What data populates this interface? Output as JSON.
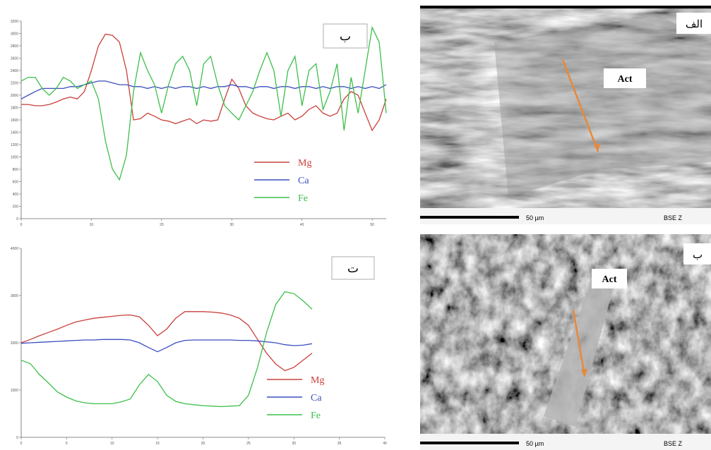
{
  "chart_data": [
    {
      "type": "line",
      "annotation": "ب",
      "x": [
        0,
        1,
        2,
        3,
        4,
        5,
        6,
        7,
        8,
        9,
        10,
        11,
        12,
        13,
        14,
        15,
        16,
        17,
        18,
        19,
        20,
        21,
        22,
        23,
        24,
        25,
        26,
        27,
        28,
        29,
        30,
        31,
        32,
        33,
        34,
        35,
        36,
        37,
        38,
        39,
        40,
        41,
        42,
        43,
        44,
        45,
        46,
        47,
        48,
        49,
        50,
        51,
        52
      ],
      "series": [
        {
          "name": "Mg",
          "color": "#c8403a",
          "values": [
            1850,
            1850,
            1830,
            1830,
            1850,
            1890,
            1940,
            1970,
            1940,
            2060,
            2400,
            2800,
            2990,
            2970,
            2860,
            2400,
            1600,
            1620,
            1710,
            1660,
            1600,
            1580,
            1540,
            1580,
            1620,
            1540,
            1600,
            1580,
            1600,
            1940,
            2260,
            2110,
            1830,
            1710,
            1660,
            1620,
            1600,
            1660,
            1710,
            1600,
            1660,
            1770,
            1830,
            1710,
            1660,
            1710,
            1940,
            2060,
            2000,
            1710,
            1430,
            1600,
            1940
          ]
        },
        {
          "name": "Ca",
          "color": "#3a4fc0",
          "values": [
            1940,
            2000,
            2060,
            2110,
            2110,
            2110,
            2110,
            2140,
            2140,
            2170,
            2200,
            2230,
            2230,
            2200,
            2170,
            2170,
            2140,
            2140,
            2110,
            2140,
            2110,
            2140,
            2110,
            2140,
            2140,
            2110,
            2140,
            2110,
            2140,
            2140,
            2170,
            2140,
            2140,
            2110,
            2140,
            2140,
            2110,
            2140,
            2140,
            2110,
            2140,
            2140,
            2110,
            2140,
            2110,
            2140,
            2140,
            2110,
            2140,
            2110,
            2140,
            2110,
            2170
          ]
        },
        {
          "name": "Fe",
          "color": "#3cbf4a",
          "values": [
            2230,
            2290,
            2290,
            2110,
            2000,
            2110,
            2290,
            2230,
            2110,
            2170,
            2230,
            1940,
            1260,
            800,
            630,
            1030,
            2060,
            2690,
            2400,
            2170,
            1710,
            2170,
            2510,
            2630,
            2400,
            1830,
            2510,
            2630,
            2170,
            1830,
            1710,
            1600,
            1830,
            2060,
            2400,
            2690,
            2400,
            1660,
            2400,
            2630,
            1830,
            2400,
            2510,
            1770,
            2060,
            2510,
            1430,
            2290,
            1710,
            2400,
            3100,
            2860,
            1710
          ]
        }
      ],
      "xlim": [
        0,
        52
      ],
      "xticks": [
        0,
        10,
        20,
        30,
        40,
        50
      ],
      "ylim": [
        0,
        3200
      ],
      "yticks": [
        0,
        200,
        400,
        600,
        800,
        1000,
        1200,
        1400,
        1600,
        1800,
        2000,
        2200,
        2400,
        2600,
        2800,
        3000,
        3200
      ]
    },
    {
      "type": "line",
      "annotation": "ت",
      "x": [
        0,
        1,
        2,
        3,
        4,
        5,
        6,
        7,
        8,
        9,
        10,
        11,
        12,
        13,
        14,
        15,
        16,
        17,
        18,
        19,
        20,
        21,
        22,
        23,
        24,
        25,
        26,
        27,
        28,
        29,
        30,
        31,
        32
      ],
      "series": [
        {
          "name": "Mg",
          "color": "#c8403a",
          "values": [
            2000,
            2070,
            2150,
            2220,
            2290,
            2370,
            2440,
            2480,
            2520,
            2540,
            2560,
            2580,
            2590,
            2550,
            2370,
            2150,
            2290,
            2520,
            2660,
            2660,
            2660,
            2650,
            2630,
            2590,
            2520,
            2370,
            2070,
            1780,
            1550,
            1410,
            1480,
            1630,
            1780
          ]
        },
        {
          "name": "Ca",
          "color": "#3a4fc0",
          "values": [
            1990,
            2000,
            2010,
            2020,
            2030,
            2040,
            2050,
            2060,
            2060,
            2070,
            2070,
            2070,
            2060,
            2000,
            1900,
            1810,
            1900,
            2000,
            2050,
            2060,
            2060,
            2060,
            2060,
            2060,
            2050,
            2050,
            2040,
            2020,
            2000,
            1960,
            1940,
            1950,
            1980
          ]
        },
        {
          "name": "Fe",
          "color": "#3cbf4a",
          "values": [
            1630,
            1560,
            1330,
            1150,
            960,
            850,
            770,
            730,
            710,
            710,
            710,
            750,
            810,
            1110,
            1330,
            1180,
            890,
            760,
            710,
            690,
            670,
            660,
            650,
            660,
            670,
            890,
            1480,
            2220,
            2810,
            3080,
            3040,
            2890,
            2710
          ]
        }
      ],
      "xlim": [
        0,
        40
      ],
      "xticks": [
        0,
        5,
        10,
        15,
        20,
        25,
        30,
        35,
        40
      ],
      "ylim": [
        0,
        4000
      ],
      "yticks": [
        0,
        1000,
        2000,
        3000,
        4000
      ]
    }
  ],
  "images": [
    {
      "label": "الف",
      "annotation": "Act",
      "scale": "50 µm",
      "detector": "BSE Z"
    },
    {
      "label": "ب",
      "annotation": "Act",
      "scale": "50 µm",
      "detector": "BSE Z"
    }
  ]
}
